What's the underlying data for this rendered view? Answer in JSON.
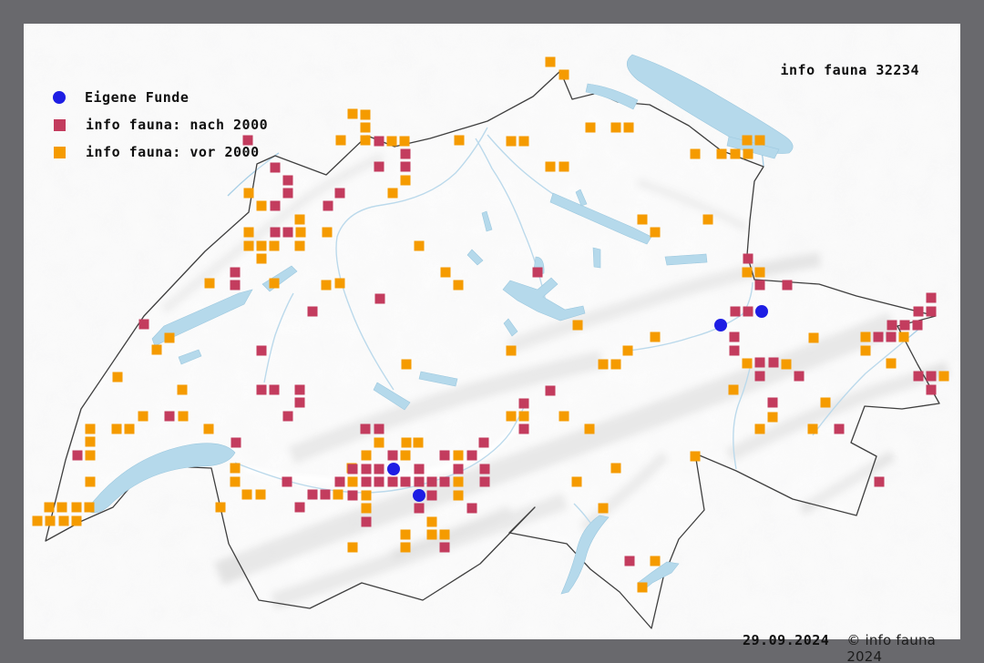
{
  "header": {
    "title": "info fauna 32234"
  },
  "legend": {
    "items": [
      {
        "id": "eigene-funde",
        "label": "Eigene Funde",
        "shape": "circle",
        "color": "#1e1ee4"
      },
      {
        "id": "info-fauna-nach-2000",
        "label": "info fauna: nach 2000",
        "shape": "square",
        "color": "#c33c5e"
      },
      {
        "id": "info-fauna-vor-2000",
        "label": "info fauna: vor 2000",
        "shape": "square",
        "color": "#f59b00"
      }
    ]
  },
  "footer": {
    "date": "29.09.2024",
    "copyright": "© info fauna 2024"
  },
  "colors": {
    "frame": "#69696d",
    "map_background": "#fbfbfb",
    "country_border": "#3f3f3f",
    "lake": "#b5d9eb",
    "river": "#a8cfe6",
    "relief": "#d2d2d2",
    "eigene_funde": "#1e1ee4",
    "nach_2000": "#c33c5e",
    "vor_2000": "#f59b00"
  },
  "map": {
    "region": "Switzerland",
    "marker_square_size": 11,
    "marker_circle_radius": 7
  },
  "markers": {
    "eigene_funde": [
      [
        836,
        342
      ],
      [
        791,
        357
      ],
      [
        432,
        515
      ],
      [
        460,
        544
      ]
    ],
    "nach_2000": [
      [
        272,
        154
      ],
      [
        302,
        184
      ],
      [
        316,
        198
      ],
      [
        316,
        212
      ],
      [
        373,
        212
      ],
      [
        302,
        226
      ],
      [
        360,
        226
      ],
      [
        302,
        255
      ],
      [
        316,
        255
      ],
      [
        258,
        299
      ],
      [
        258,
        313
      ],
      [
        416,
        155
      ],
      [
        445,
        169
      ],
      [
        416,
        183
      ],
      [
        445,
        183
      ],
      [
        343,
        342
      ],
      [
        158,
        356
      ],
      [
        287,
        385
      ],
      [
        287,
        428
      ],
      [
        301,
        428
      ],
      [
        329,
        428
      ],
      [
        329,
        442
      ],
      [
        186,
        457
      ],
      [
        316,
        457
      ],
      [
        259,
        486
      ],
      [
        85,
        500
      ],
      [
        315,
        529
      ],
      [
        373,
        529
      ],
      [
        343,
        543
      ],
      [
        357,
        543
      ],
      [
        329,
        557
      ],
      [
        417,
        328
      ],
      [
        590,
        299
      ],
      [
        604,
        429
      ],
      [
        575,
        443
      ],
      [
        575,
        471
      ],
      [
        401,
        471
      ],
      [
        416,
        471
      ],
      [
        821,
        284
      ],
      [
        834,
        313
      ],
      [
        864,
        313
      ],
      [
        807,
        342
      ],
      [
        821,
        342
      ],
      [
        1022,
        327
      ],
      [
        1008,
        342
      ],
      [
        1022,
        342
      ],
      [
        979,
        357
      ],
      [
        993,
        357
      ],
      [
        1007,
        357
      ],
      [
        806,
        370
      ],
      [
        806,
        385
      ],
      [
        964,
        370
      ],
      [
        978,
        370
      ],
      [
        834,
        398
      ],
      [
        849,
        398
      ],
      [
        834,
        413
      ],
      [
        877,
        413
      ],
      [
        1008,
        413
      ],
      [
        1022,
        413
      ],
      [
        1022,
        428
      ],
      [
        848,
        442
      ],
      [
        921,
        471
      ],
      [
        965,
        529
      ],
      [
        531,
        486
      ],
      [
        431,
        500
      ],
      [
        488,
        500
      ],
      [
        518,
        500
      ],
      [
        387,
        515
      ],
      [
        402,
        515
      ],
      [
        416,
        515
      ],
      [
        460,
        515
      ],
      [
        503,
        515
      ],
      [
        532,
        515
      ],
      [
        402,
        529
      ],
      [
        416,
        529
      ],
      [
        431,
        529
      ],
      [
        445,
        529
      ],
      [
        460,
        529
      ],
      [
        474,
        529
      ],
      [
        488,
        529
      ],
      [
        532,
        529
      ],
      [
        387,
        544
      ],
      [
        474,
        544
      ],
      [
        460,
        558
      ],
      [
        518,
        558
      ],
      [
        402,
        573
      ],
      [
        488,
        601
      ],
      [
        691,
        616
      ]
    ],
    "vor_2000": [
      [
        387,
        125
      ],
      [
        374,
        154
      ],
      [
        273,
        212
      ],
      [
        287,
        226
      ],
      [
        329,
        241
      ],
      [
        273,
        255
      ],
      [
        330,
        255
      ],
      [
        359,
        255
      ],
      [
        273,
        270
      ],
      [
        287,
        270
      ],
      [
        301,
        270
      ],
      [
        329,
        270
      ],
      [
        287,
        284
      ],
      [
        230,
        311
      ],
      [
        301,
        311
      ],
      [
        358,
        313
      ],
      [
        373,
        311
      ],
      [
        604,
        68
      ],
      [
        619,
        82
      ],
      [
        401,
        126
      ],
      [
        401,
        140
      ],
      [
        401,
        154
      ],
      [
        430,
        155
      ],
      [
        444,
        155
      ],
      [
        504,
        154
      ],
      [
        561,
        155
      ],
      [
        575,
        155
      ],
      [
        648,
        140
      ],
      [
        676,
        140
      ],
      [
        690,
        140
      ],
      [
        604,
        183
      ],
      [
        619,
        183
      ],
      [
        445,
        198
      ],
      [
        431,
        212
      ],
      [
        705,
        241
      ],
      [
        719,
        255
      ],
      [
        777,
        241
      ],
      [
        820,
        154
      ],
      [
        834,
        154
      ],
      [
        763,
        169
      ],
      [
        792,
        169
      ],
      [
        807,
        169
      ],
      [
        821,
        169
      ],
      [
        186,
        371
      ],
      [
        172,
        384
      ],
      [
        129,
        414
      ],
      [
        200,
        428
      ],
      [
        157,
        457
      ],
      [
        201,
        457
      ],
      [
        99,
        471
      ],
      [
        128,
        471
      ],
      [
        142,
        471
      ],
      [
        229,
        471
      ],
      [
        99,
        485
      ],
      [
        99,
        500
      ],
      [
        99,
        529
      ],
      [
        258,
        514
      ],
      [
        258,
        529
      ],
      [
        386,
        514
      ],
      [
        271,
        543
      ],
      [
        286,
        543
      ],
      [
        371,
        543
      ],
      [
        54,
        557
      ],
      [
        68,
        557
      ],
      [
        84,
        557
      ],
      [
        98,
        557
      ],
      [
        242,
        557
      ],
      [
        41,
        572
      ],
      [
        55,
        572
      ],
      [
        70,
        572
      ],
      [
        84,
        572
      ],
      [
        460,
        270
      ],
      [
        489,
        299
      ],
      [
        503,
        313
      ],
      [
        634,
        357
      ],
      [
        719,
        370
      ],
      [
        561,
        385
      ],
      [
        689,
        385
      ],
      [
        662,
        400
      ],
      [
        676,
        400
      ],
      [
        446,
        400
      ],
      [
        561,
        457
      ],
      [
        575,
        457
      ],
      [
        619,
        457
      ],
      [
        647,
        471
      ],
      [
        416,
        486
      ],
      [
        446,
        486
      ],
      [
        459,
        486
      ],
      [
        820,
        299
      ],
      [
        834,
        299
      ],
      [
        893,
        371
      ],
      [
        950,
        370
      ],
      [
        992,
        370
      ],
      [
        950,
        385
      ],
      [
        820,
        399
      ],
      [
        863,
        400
      ],
      [
        978,
        399
      ],
      [
        1036,
        413
      ],
      [
        805,
        428
      ],
      [
        848,
        458
      ],
      [
        906,
        442
      ],
      [
        834,
        471
      ],
      [
        892,
        471
      ],
      [
        763,
        501
      ],
      [
        402,
        500
      ],
      [
        445,
        500
      ],
      [
        503,
        500
      ],
      [
        387,
        529
      ],
      [
        503,
        529
      ],
      [
        402,
        544
      ],
      [
        503,
        544
      ],
      [
        402,
        558
      ],
      [
        474,
        573
      ],
      [
        445,
        587
      ],
      [
        474,
        587
      ],
      [
        488,
        587
      ],
      [
        387,
        601
      ],
      [
        445,
        601
      ],
      [
        676,
        514
      ],
      [
        633,
        529
      ],
      [
        662,
        558
      ],
      [
        719,
        616
      ],
      [
        705,
        645
      ]
    ]
  }
}
